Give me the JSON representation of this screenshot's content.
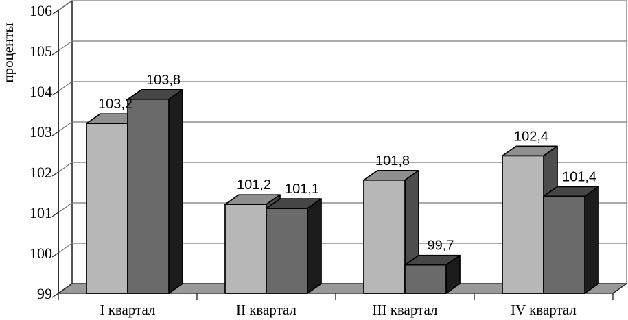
{
  "page": {
    "background": "#ffffff"
  },
  "chart_data": {
    "type": "bar",
    "style": "3d-clustered-column",
    "title": "",
    "xlabel": "",
    "ylabel": "проценты",
    "categories": [
      "I квартал",
      "II квартал",
      "III квартал",
      "IV квартал"
    ],
    "series": [
      {
        "values": [
          103.2,
          101.2,
          101.8,
          102.4
        ],
        "value_labels": [
          "103,2",
          "101,2",
          "101,8",
          "102,4"
        ]
      },
      {
        "values": [
          103.8,
          101.1,
          99.7,
          101.4
        ],
        "value_labels": [
          "103,8",
          "101,1",
          "99,7",
          "101,4"
        ]
      }
    ],
    "y_axis": {
      "min": 99,
      "max": 106,
      "step": 1,
      "tick_labels": [
        "99",
        "100",
        "101",
        "102",
        "103",
        "104",
        "105",
        "106"
      ]
    },
    "ylim": [
      99,
      106
    ],
    "grid": true,
    "legend": false
  },
  "colors": {
    "series1": {
      "front": "#b7b7b7",
      "top": "#8f8f8f",
      "side": "#4d4d4d"
    },
    "series2": {
      "front": "#6a6a6a",
      "top": "#464646",
      "side": "#1c1c1c"
    },
    "floor": "#999999",
    "wall": "#ffffff",
    "gridline": "#787878",
    "frame": "#2b2b2b",
    "bar_outline": "#000000",
    "text": "#000000"
  }
}
